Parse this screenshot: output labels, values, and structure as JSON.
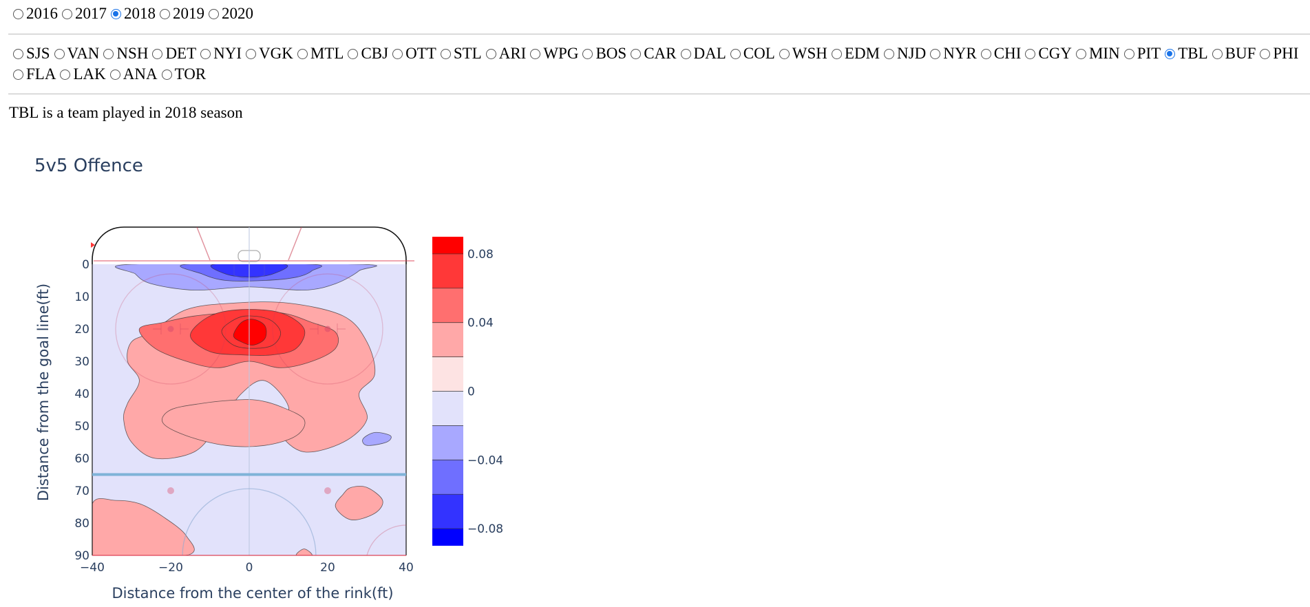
{
  "years": {
    "options": [
      "2016",
      "2017",
      "2018",
      "2019",
      "2020"
    ],
    "selected": "2018"
  },
  "teams": {
    "options": [
      "SJS",
      "VAN",
      "NSH",
      "DET",
      "NYI",
      "VGK",
      "MTL",
      "CBJ",
      "OTT",
      "STL",
      "ARI",
      "WPG",
      "BOS",
      "CAR",
      "DAL",
      "COL",
      "WSH",
      "EDM",
      "NJD",
      "NYR",
      "CHI",
      "CGY",
      "MIN",
      "PIT",
      "TBL",
      "BUF",
      "PHI",
      "FLA",
      "LAK",
      "ANA",
      "TOR"
    ],
    "selected": "TBL"
  },
  "info_text": "TBL is a team played in 2018 season",
  "chart_data": {
    "type": "contour",
    "title": "5v5 Offence",
    "xlabel": "Distance from the center of the rink(ft)",
    "ylabel": "Distance from the goal line(ft)",
    "xlim": [
      -40,
      40
    ],
    "ylim": [
      0,
      90
    ],
    "y_reversed": true,
    "x_ticks": [
      -40,
      -20,
      0,
      20,
      40
    ],
    "y_ticks": [
      0,
      10,
      20,
      30,
      40,
      50,
      60,
      70,
      80,
      90
    ],
    "colorbar": {
      "ticks": [
        0.08,
        0.04,
        0,
        -0.04,
        -0.08
      ],
      "tick_labels": [
        "0.08",
        "0.04",
        "0",
        "−0.04",
        "−0.08"
      ],
      "range": [
        -0.09,
        0.09
      ],
      "levels": [
        -0.08,
        -0.06,
        -0.04,
        -0.02,
        0,
        0.02,
        0.04,
        0.06,
        0.08
      ],
      "colors": [
        "#0000ff",
        "#3333ff",
        "#6f6fff",
        "#a8a8ff",
        "#e2e2fb",
        "#fde3e3",
        "#ffa8a8",
        "#ff6f6f",
        "#ff3838",
        "#ff0000"
      ]
    },
    "regions": [
      {
        "level": 0.02,
        "kind": "positive",
        "points": [
          [
            -25,
            21
          ],
          [
            -30,
            24
          ],
          [
            -31,
            30
          ],
          [
            -28,
            36
          ],
          [
            -31,
            43
          ],
          [
            -32,
            48
          ],
          [
            -30,
            55
          ],
          [
            -24,
            60
          ],
          [
            -14,
            58
          ],
          [
            -8,
            50
          ],
          [
            -2,
            40
          ],
          [
            4,
            36
          ],
          [
            10,
            44
          ],
          [
            8,
            52
          ],
          [
            14,
            58
          ],
          [
            24,
            55
          ],
          [
            30,
            48
          ],
          [
            28,
            40
          ],
          [
            32,
            34
          ],
          [
            30,
            24
          ],
          [
            24,
            16
          ],
          [
            10,
            12
          ],
          [
            -4,
            12
          ],
          [
            -16,
            14
          ]
        ]
      },
      {
        "level": 0.04,
        "kind": "positive",
        "points": [
          [
            -28,
            20
          ],
          [
            -24,
            26
          ],
          [
            -16,
            30
          ],
          [
            -8,
            32
          ],
          [
            0,
            30
          ],
          [
            8,
            32
          ],
          [
            16,
            30
          ],
          [
            22,
            26
          ],
          [
            22,
            21
          ],
          [
            16,
            18
          ],
          [
            8,
            15
          ],
          [
            -4,
            15
          ],
          [
            -14,
            16
          ],
          [
            -22,
            18
          ]
        ]
      },
      {
        "level": 0.06,
        "kind": "positive",
        "points": [
          [
            -15,
            22
          ],
          [
            -10,
            27
          ],
          [
            -2,
            28
          ],
          [
            6,
            28
          ],
          [
            12,
            26
          ],
          [
            14,
            20
          ],
          [
            8,
            15
          ],
          [
            -2,
            14
          ],
          [
            -10,
            16
          ]
        ]
      },
      {
        "level": 0.07,
        "kind": "positive",
        "points": [
          [
            -7,
            21
          ],
          [
            -4,
            25
          ],
          [
            1,
            26
          ],
          [
            6,
            25
          ],
          [
            8,
            21
          ],
          [
            5,
            17
          ],
          [
            -1,
            16
          ],
          [
            -5,
            18
          ]
        ]
      },
      {
        "level": 0.08,
        "kind": "positive",
        "points": [
          [
            -4,
            22
          ],
          [
            -2,
            24
          ],
          [
            1,
            25
          ],
          [
            4,
            23
          ],
          [
            4,
            19
          ],
          [
            1,
            17
          ],
          [
            -2,
            18
          ]
        ]
      },
      {
        "level": 0.02,
        "kind": "positive",
        "points": [
          [
            -20,
            45
          ],
          [
            -22,
            49
          ],
          [
            -16,
            53
          ],
          [
            -6,
            56
          ],
          [
            4,
            56
          ],
          [
            12,
            53
          ],
          [
            14,
            48
          ],
          [
            8,
            44
          ],
          [
            2,
            42
          ],
          [
            -4,
            42
          ],
          [
            -12,
            43
          ]
        ]
      },
      {
        "level": 0.02,
        "kind": "positive",
        "points": [
          [
            -40,
            74
          ],
          [
            -40,
            90
          ],
          [
            -16,
            90
          ],
          [
            -16,
            84
          ],
          [
            -22,
            78
          ],
          [
            -28,
            74
          ],
          [
            -34,
            73
          ]
        ]
      },
      {
        "level": 0.02,
        "kind": "positive",
        "points": [
          [
            24,
            71
          ],
          [
            22,
            75
          ],
          [
            26,
            79
          ],
          [
            32,
            77
          ],
          [
            34,
            73
          ],
          [
            30,
            69
          ],
          [
            26,
            69
          ]
        ]
      },
      {
        "level": 0.02,
        "kind": "positive",
        "points": [
          [
            12,
            90
          ],
          [
            14,
            88
          ],
          [
            16,
            90
          ]
        ]
      },
      {
        "level": -0.02,
        "kind": "negative",
        "points": [
          [
            -30,
            0
          ],
          [
            -29,
            3
          ],
          [
            -25,
            6
          ],
          [
            -14,
            8
          ],
          [
            0,
            7
          ],
          [
            14,
            8
          ],
          [
            22,
            6
          ],
          [
            28,
            2
          ],
          [
            28,
            0
          ]
        ]
      },
      {
        "level": -0.04,
        "kind": "negative",
        "points": [
          [
            -16,
            0
          ],
          [
            -12,
            3
          ],
          [
            -6,
            5
          ],
          [
            4,
            5
          ],
          [
            12,
            4
          ],
          [
            16,
            2
          ],
          [
            16,
            0
          ]
        ]
      },
      {
        "level": -0.06,
        "kind": "negative",
        "points": [
          [
            -9,
            0
          ],
          [
            -6,
            3
          ],
          [
            0,
            4
          ],
          [
            6,
            3
          ],
          [
            9,
            0
          ]
        ]
      },
      {
        "level": -0.02,
        "kind": "negative",
        "points": [
          [
            29,
            54
          ],
          [
            30,
            56
          ],
          [
            35,
            55
          ],
          [
            36,
            53
          ],
          [
            32,
            52
          ]
        ]
      }
    ]
  }
}
